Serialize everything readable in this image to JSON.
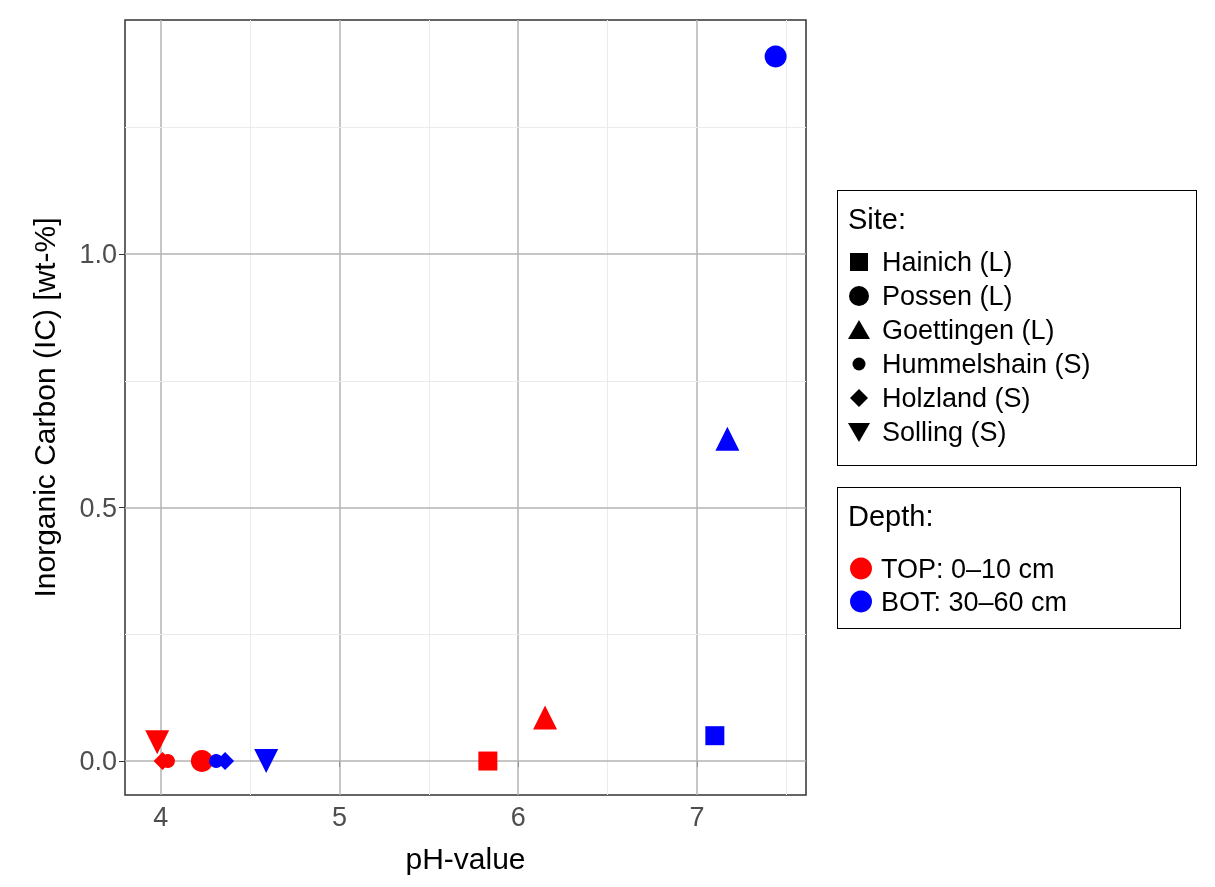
{
  "chart_data": {
    "type": "scatter",
    "xlabel": "pH-value",
    "ylabel": "Inorganic Carbon (IC) [wt-%]",
    "xlim": [
      3.8,
      7.61
    ],
    "xticks": [
      4,
      5,
      6,
      7
    ],
    "ylim": [
      -0.067,
      1.462
    ],
    "yticks": [
      {
        "value": 0,
        "label": "0.0"
      },
      {
        "value": 0.5,
        "label": "0.5"
      },
      {
        "value": 1,
        "label": "1.0"
      }
    ],
    "grid": true,
    "legend": "right",
    "legend_title": [
      "Site:",
      "Depth:"
    ],
    "annotations": [
      "Hainich (L)",
      "Possen (L)",
      "Goettingen (L)",
      "Hummelshain (S)",
      "Holzland (S)",
      "Solling (S)"
    ],
    "marker": [
      "square",
      "circle",
      "triangle",
      "circle-small",
      "diamond",
      "triangle-down"
    ],
    "series": [
      {
        "name": "TOP: 0–10 cm",
        "color": "#ff0000",
        "x": [
          5.83,
          4.23,
          6.15,
          4.04,
          4.01,
          3.98
        ],
        "values": [
          0,
          0,
          0.086,
          0,
          0,
          0.037
        ],
        "marker": [
          "square",
          "circle",
          "triangle",
          "circle-small",
          "diamond",
          "triangle-down"
        ]
      },
      {
        "name": "BOT: 30–60 cm",
        "color": "#0000ff",
        "x": [
          7.1,
          7.44,
          7.17,
          4.31,
          4.36,
          4.59
        ],
        "values": [
          0.05,
          1.39,
          0.636,
          0,
          0,
          0
        ],
        "marker": [
          "square",
          "circle",
          "triangle",
          "circle-small",
          "diamond",
          "triangle-down"
        ]
      }
    ]
  }
}
